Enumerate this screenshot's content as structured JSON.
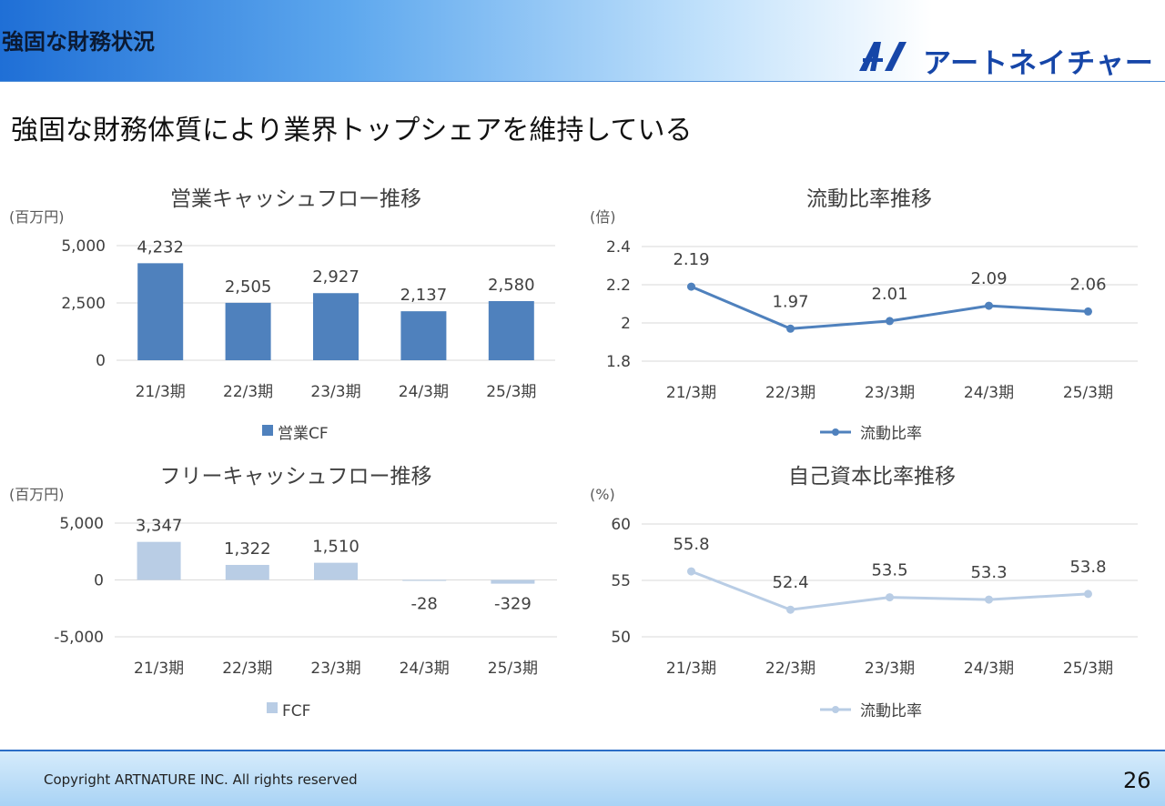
{
  "header": {
    "section_title": "強固な財務状況",
    "logo_text": "アートネイチャー"
  },
  "headline": "強固な財務体質により業界トップシェアを維持している",
  "footer": {
    "copyright": "Copyright ARTNATURE INC. All rights reserved",
    "page": "26"
  },
  "colors": {
    "dark_series": "#4f81bd",
    "light_series": "#b9cde5",
    "gridline": "#d9d9d9",
    "logo": "#1646a8"
  },
  "chart_data": [
    {
      "type": "bar",
      "title": "営業キャッシュフロー推移",
      "ylabel": "(百万円)",
      "categories": [
        "21/3期",
        "22/3期",
        "23/3期",
        "24/3期",
        "25/3期"
      ],
      "series": [
        {
          "name": "営業CF",
          "values": [
            4232,
            2505,
            2927,
            2137,
            2580
          ]
        }
      ],
      "value_labels": [
        "4,232",
        "2,505",
        "2,927",
        "2,137",
        "2,580"
      ],
      "yticks": [
        "5,000",
        "2,500",
        "0"
      ],
      "ylim": [
        0,
        5000
      ],
      "grid": true,
      "legend": "bottom"
    },
    {
      "type": "line",
      "title": "流動比率推移",
      "ylabel": "(倍)",
      "categories": [
        "21/3期",
        "22/3期",
        "23/3期",
        "24/3期",
        "25/3期"
      ],
      "series": [
        {
          "name": "流動比率",
          "values": [
            2.19,
            1.97,
            2.01,
            2.09,
            2.06
          ]
        }
      ],
      "value_labels": [
        "2.19",
        "1.97",
        "2.01",
        "2.09",
        "2.06"
      ],
      "yticks": [
        "2.4",
        "2.2",
        "2",
        "1.8"
      ],
      "ylim": [
        1.8,
        2.4
      ],
      "grid": true,
      "legend": "bottom"
    },
    {
      "type": "bar",
      "title": "フリーキャッシュフロー推移",
      "ylabel": "(百万円)",
      "categories": [
        "21/3期",
        "22/3期",
        "23/3期",
        "24/3期",
        "25/3期"
      ],
      "series": [
        {
          "name": "FCF",
          "values": [
            3347,
            1322,
            1510,
            -28,
            -329
          ]
        }
      ],
      "value_labels": [
        "3,347",
        "1,322",
        "1,510",
        "-28",
        "-329"
      ],
      "yticks": [
        "5,000",
        "0",
        "-5,000"
      ],
      "ylim": [
        -5000,
        5000
      ],
      "grid": true,
      "legend": "bottom"
    },
    {
      "type": "line",
      "title": "自己資本比率推移",
      "ylabel": "(%)",
      "categories": [
        "21/3期",
        "22/3期",
        "23/3期",
        "24/3期",
        "25/3期"
      ],
      "series": [
        {
          "name": "流動比率",
          "values": [
            55.8,
            52.4,
            53.5,
            53.3,
            53.8
          ]
        }
      ],
      "value_labels": [
        "55.8",
        "52.4",
        "53.5",
        "53.3",
        "53.8"
      ],
      "yticks": [
        "60",
        "55",
        "50"
      ],
      "ylim": [
        50,
        60
      ],
      "grid": true,
      "legend": "bottom"
    }
  ]
}
